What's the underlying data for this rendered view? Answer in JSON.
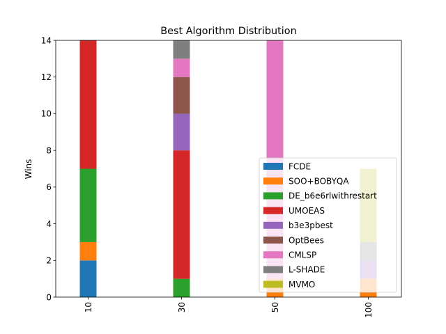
{
  "chart_data": {
    "type": "bar",
    "stacked": true,
    "title": "Best Algorithm Distribution",
    "xlabel": "",
    "ylabel": "Wins",
    "categories": [
      "10",
      "30",
      "50",
      "100"
    ],
    "ylim": [
      0,
      14
    ],
    "yticks": [
      0,
      2,
      4,
      6,
      8,
      10,
      12,
      14
    ],
    "grid": false,
    "legend_position": "lower-right",
    "series": [
      {
        "name": "FCDE",
        "color": "#1f77b4",
        "values": [
          2,
          0,
          0,
          0
        ]
      },
      {
        "name": "SOO+BOBYQA",
        "color": "#ff7f0e",
        "values": [
          1,
          0,
          1,
          1
        ]
      },
      {
        "name": "DE_b6e6rlwithrestart",
        "color": "#2ca02c",
        "values": [
          4,
          1,
          0,
          0
        ]
      },
      {
        "name": "UMOEAS",
        "color": "#d62728",
        "values": [
          7,
          7,
          0,
          0
        ]
      },
      {
        "name": "b3e3pbest",
        "color": "#9467bd",
        "values": [
          0,
          2,
          0,
          1
        ]
      },
      {
        "name": "OptBees",
        "color": "#8c564b",
        "values": [
          0,
          2,
          0,
          0
        ]
      },
      {
        "name": "CMLSP",
        "color": "#e377c2",
        "values": [
          0,
          1,
          13,
          0
        ]
      },
      {
        "name": "L-SHADE",
        "color": "#7f7f7f",
        "values": [
          0,
          1,
          0,
          1
        ]
      },
      {
        "name": "MVMO",
        "color": "#bcbd22",
        "values": [
          0,
          0,
          0,
          4
        ]
      }
    ]
  }
}
